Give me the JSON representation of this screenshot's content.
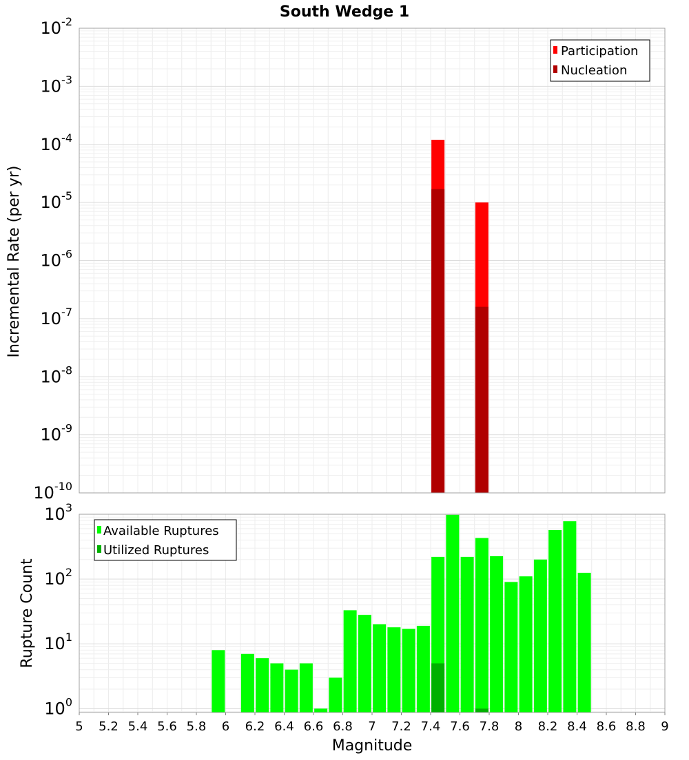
{
  "chart_data": [
    {
      "type": "bar",
      "title": "South Wedge 1",
      "xlabel": "",
      "ylabel": "Incremental Rate (per yr)",
      "yscale": "log",
      "ylim_exp": [
        -10,
        -2
      ],
      "xlim": [
        5,
        9
      ],
      "y_tick_exponents": [
        "-10",
        "-9",
        "-8",
        "-7",
        "-6",
        "-5",
        "-4",
        "-3",
        "-2"
      ],
      "y_tick_base": "10",
      "legend_position": "top-right",
      "series": [
        {
          "name": "Participation",
          "color": "#ff0000",
          "points": [
            {
              "x": 7.45,
              "y": 0.00012
            },
            {
              "x": 7.75,
              "y": 1e-05
            }
          ]
        },
        {
          "name": "Nucleation",
          "color": "#b00000",
          "points": [
            {
              "x": 7.45,
              "y": 1.7e-05
            },
            {
              "x": 7.75,
              "y": 1.6e-07
            }
          ]
        }
      ]
    },
    {
      "type": "bar",
      "title": "",
      "xlabel": "Magnitude",
      "ylabel": "Rupture Count",
      "yscale": "log",
      "ylim_exp": [
        -0.06,
        3
      ],
      "xlim": [
        5,
        9
      ],
      "y_tick_exponents": [
        "0",
        "1",
        "2",
        "3"
      ],
      "y_tick_base": "10",
      "x_ticks": [
        "5",
        "5.2",
        "5.4",
        "5.6",
        "5.8",
        "6",
        "6.2",
        "6.4",
        "6.6",
        "6.8",
        "7",
        "7.2",
        "7.4",
        "7.6",
        "7.8",
        "8",
        "8.2",
        "8.4",
        "8.6",
        "8.8",
        "9"
      ],
      "legend_position": "top-left",
      "series": [
        {
          "name": "Available Ruptures",
          "color": "#00ff00",
          "points": [
            {
              "x": 5.95,
              "y": 8
            },
            {
              "x": 6.15,
              "y": 7
            },
            {
              "x": 6.25,
              "y": 6
            },
            {
              "x": 6.35,
              "y": 5
            },
            {
              "x": 6.45,
              "y": 4
            },
            {
              "x": 6.55,
              "y": 5
            },
            {
              "x": 6.65,
              "y": 1
            },
            {
              "x": 6.75,
              "y": 3
            },
            {
              "x": 6.85,
              "y": 33
            },
            {
              "x": 6.95,
              "y": 28
            },
            {
              "x": 7.05,
              "y": 20
            },
            {
              "x": 7.15,
              "y": 18
            },
            {
              "x": 7.25,
              "y": 17
            },
            {
              "x": 7.35,
              "y": 19
            },
            {
              "x": 7.45,
              "y": 220
            },
            {
              "x": 7.55,
              "y": 980
            },
            {
              "x": 7.65,
              "y": 220
            },
            {
              "x": 7.75,
              "y": 430
            },
            {
              "x": 7.85,
              "y": 225
            },
            {
              "x": 7.95,
              "y": 90
            },
            {
              "x": 8.05,
              "y": 110
            },
            {
              "x": 8.15,
              "y": 200
            },
            {
              "x": 8.25,
              "y": 570
            },
            {
              "x": 8.35,
              "y": 780
            },
            {
              "x": 8.45,
              "y": 125
            }
          ]
        },
        {
          "name": "Utilized Ruptures",
          "color": "#00b000",
          "points": [
            {
              "x": 7.45,
              "y": 5
            },
            {
              "x": 7.75,
              "y": 1
            }
          ]
        }
      ]
    }
  ]
}
